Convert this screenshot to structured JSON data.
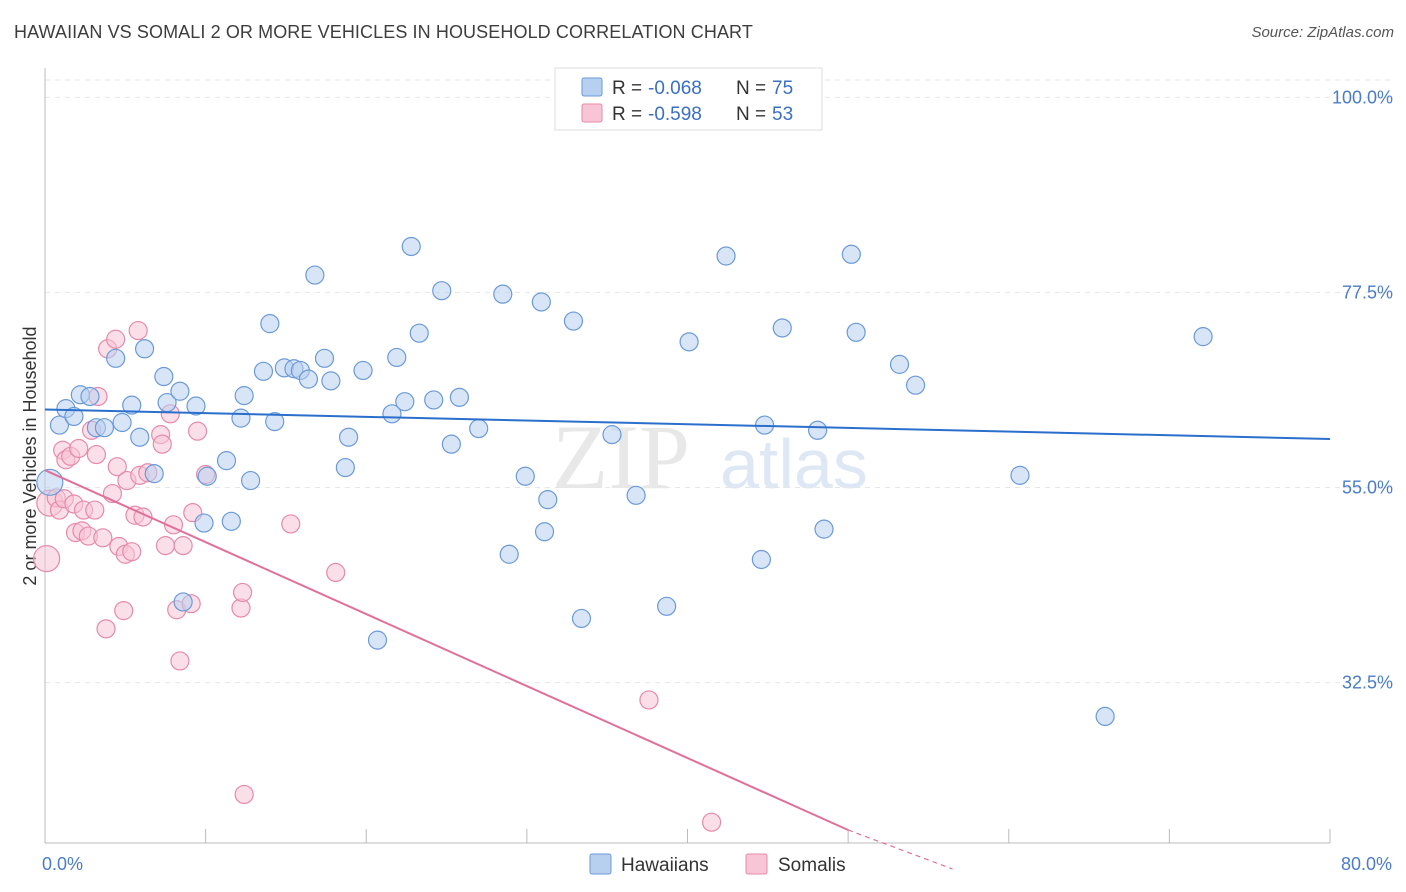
{
  "header": {
    "title": "HAWAIIAN VS SOMALI 2 OR MORE VEHICLES IN HOUSEHOLD CORRELATION CHART",
    "source": "Source: ZipAtlas.com"
  },
  "watermark": {
    "zip": "ZIP",
    "atlas": "atlas"
  },
  "colors": {
    "hawaiian_fill": "#b8d0f0",
    "hawaiian_stroke": "#6b9ad8",
    "hawaiian_line": "#2b6fcc",
    "somali_fill": "#f8c5d6",
    "somali_stroke": "#e68aa9",
    "somali_line": "#e0709a"
  },
  "legend": {
    "rows": [
      {
        "r_label": "R =",
        "r_value": "-0.068",
        "n_label": "N =",
        "n_value": "75"
      },
      {
        "r_label": "R =",
        "r_value": "-0.598",
        "n_label": "N =",
        "n_value": "53"
      }
    ]
  },
  "chart_data": {
    "type": "scatter",
    "title": "HAWAIIAN VS SOMALI 2 OR MORE VEHICLES IN HOUSEHOLD CORRELATION CHART",
    "xlabel": "",
    "ylabel": "2 or more Vehicles in Household",
    "xlim": [
      0,
      80
    ],
    "ylim": [
      14,
      102
    ],
    "x_tick_labels": [
      "0.0%",
      "80.0%"
    ],
    "y_ticks": [
      32.5,
      55.0,
      77.5,
      100.0
    ],
    "y_tick_labels": [
      "32.5%",
      "55.0%",
      "77.5%",
      "100.0%"
    ],
    "legend_position": "top-center",
    "series": [
      {
        "name": "Hawaiians",
        "r": -0.068,
        "n": 75,
        "trend": {
          "x": [
            0,
            80
          ],
          "y": [
            64.0,
            60.6
          ]
        },
        "points": [
          [
            0.3,
            55.6
          ],
          [
            0.9,
            62.2
          ],
          [
            1.3,
            64.1
          ],
          [
            1.8,
            63.2
          ],
          [
            2.2,
            65.7
          ],
          [
            2.8,
            65.5
          ],
          [
            3.2,
            61.9
          ],
          [
            3.7,
            61.9
          ],
          [
            4.4,
            69.9
          ],
          [
            4.8,
            62.5
          ],
          [
            5.4,
            64.5
          ],
          [
            5.9,
            60.8
          ],
          [
            6.2,
            71.0
          ],
          [
            6.8,
            56.6
          ],
          [
            7.4,
            67.8
          ],
          [
            7.6,
            64.8
          ],
          [
            8.4,
            66.1
          ],
          [
            8.6,
            41.8
          ],
          [
            9.4,
            64.4
          ],
          [
            9.9,
            50.9
          ],
          [
            10.1,
            56.3
          ],
          [
            11.3,
            58.1
          ],
          [
            11.6,
            51.1
          ],
          [
            12.2,
            63.0
          ],
          [
            12.4,
            65.6
          ],
          [
            12.8,
            55.8
          ],
          [
            13.6,
            68.4
          ],
          [
            14.0,
            73.9
          ],
          [
            14.3,
            62.6
          ],
          [
            14.9,
            68.8
          ],
          [
            15.5,
            68.7
          ],
          [
            15.9,
            68.5
          ],
          [
            16.4,
            67.5
          ],
          [
            16.8,
            79.5
          ],
          [
            17.4,
            69.9
          ],
          [
            17.8,
            67.3
          ],
          [
            18.7,
            57.3
          ],
          [
            18.9,
            60.8
          ],
          [
            19.8,
            68.5
          ],
          [
            20.7,
            37.4
          ],
          [
            21.6,
            63.5
          ],
          [
            21.9,
            70.0
          ],
          [
            22.4,
            64.9
          ],
          [
            22.8,
            82.8
          ],
          [
            23.3,
            72.8
          ],
          [
            24.2,
            65.1
          ],
          [
            24.7,
            77.7
          ],
          [
            25.3,
            60.0
          ],
          [
            25.8,
            65.4
          ],
          [
            27.0,
            61.8
          ],
          [
            28.5,
            77.3
          ],
          [
            28.9,
            47.3
          ],
          [
            29.9,
            56.3
          ],
          [
            30.9,
            76.4
          ],
          [
            31.1,
            49.9
          ],
          [
            31.3,
            53.6
          ],
          [
            32.9,
            74.2
          ],
          [
            33.4,
            39.9
          ],
          [
            35.3,
            61.1
          ],
          [
            36.8,
            54.1
          ],
          [
            38.7,
            41.3
          ],
          [
            40.1,
            71.8
          ],
          [
            42.4,
            81.7
          ],
          [
            44.6,
            46.7
          ],
          [
            44.8,
            62.2
          ],
          [
            45.9,
            73.4
          ],
          [
            48.1,
            61.6
          ],
          [
            48.5,
            50.2
          ],
          [
            50.2,
            81.9
          ],
          [
            50.5,
            72.9
          ],
          [
            53.2,
            69.2
          ],
          [
            54.2,
            66.8
          ],
          [
            60.7,
            56.4
          ],
          [
            66.0,
            28.6
          ],
          [
            72.1,
            72.4
          ]
        ]
      },
      {
        "name": "Somalis",
        "r": -0.598,
        "n": 53,
        "trend": {
          "x": [
            0,
            50
          ],
          "y": [
            57.0,
            15.5
          ]
        },
        "trend_extension": {
          "x": [
            50,
            56.5
          ],
          "y": [
            15.5,
            11.0
          ]
        },
        "points": [
          [
            0.1,
            46.8
          ],
          [
            0.3,
            53.2
          ],
          [
            0.7,
            53.8
          ],
          [
            0.9,
            52.4
          ],
          [
            1.1,
            59.3
          ],
          [
            1.2,
            53.7
          ],
          [
            1.3,
            58.2
          ],
          [
            1.6,
            58.6
          ],
          [
            1.8,
            53.1
          ],
          [
            1.9,
            49.8
          ],
          [
            2.1,
            59.5
          ],
          [
            2.3,
            50.0
          ],
          [
            2.4,
            52.4
          ],
          [
            2.7,
            49.4
          ],
          [
            2.9,
            61.6
          ],
          [
            3.1,
            52.4
          ],
          [
            3.2,
            58.8
          ],
          [
            3.3,
            65.5
          ],
          [
            3.6,
            49.2
          ],
          [
            3.8,
            38.7
          ],
          [
            3.9,
            71.0
          ],
          [
            4.2,
            54.3
          ],
          [
            4.4,
            72.1
          ],
          [
            4.5,
            57.4
          ],
          [
            4.6,
            48.2
          ],
          [
            4.9,
            40.8
          ],
          [
            5.0,
            47.3
          ],
          [
            5.1,
            55.8
          ],
          [
            5.4,
            47.6
          ],
          [
            5.6,
            51.8
          ],
          [
            5.8,
            73.1
          ],
          [
            5.9,
            56.4
          ],
          [
            6.1,
            51.6
          ],
          [
            6.4,
            56.7
          ],
          [
            7.2,
            61.1
          ],
          [
            7.3,
            60.0
          ],
          [
            7.5,
            48.3
          ],
          [
            7.8,
            63.5
          ],
          [
            8.0,
            50.7
          ],
          [
            8.2,
            40.9
          ],
          [
            8.4,
            35.0
          ],
          [
            8.6,
            48.3
          ],
          [
            9.1,
            41.6
          ],
          [
            9.2,
            52.1
          ],
          [
            9.5,
            61.5
          ],
          [
            10.0,
            56.5
          ],
          [
            12.2,
            41.1
          ],
          [
            12.3,
            42.9
          ],
          [
            12.4,
            19.6
          ],
          [
            15.3,
            50.8
          ],
          [
            18.1,
            45.2
          ],
          [
            37.6,
            30.5
          ],
          [
            41.5,
            16.4
          ]
        ]
      }
    ]
  },
  "bottom_legend": {
    "items": [
      {
        "label": "Hawaiians"
      },
      {
        "label": "Somalis"
      }
    ]
  }
}
